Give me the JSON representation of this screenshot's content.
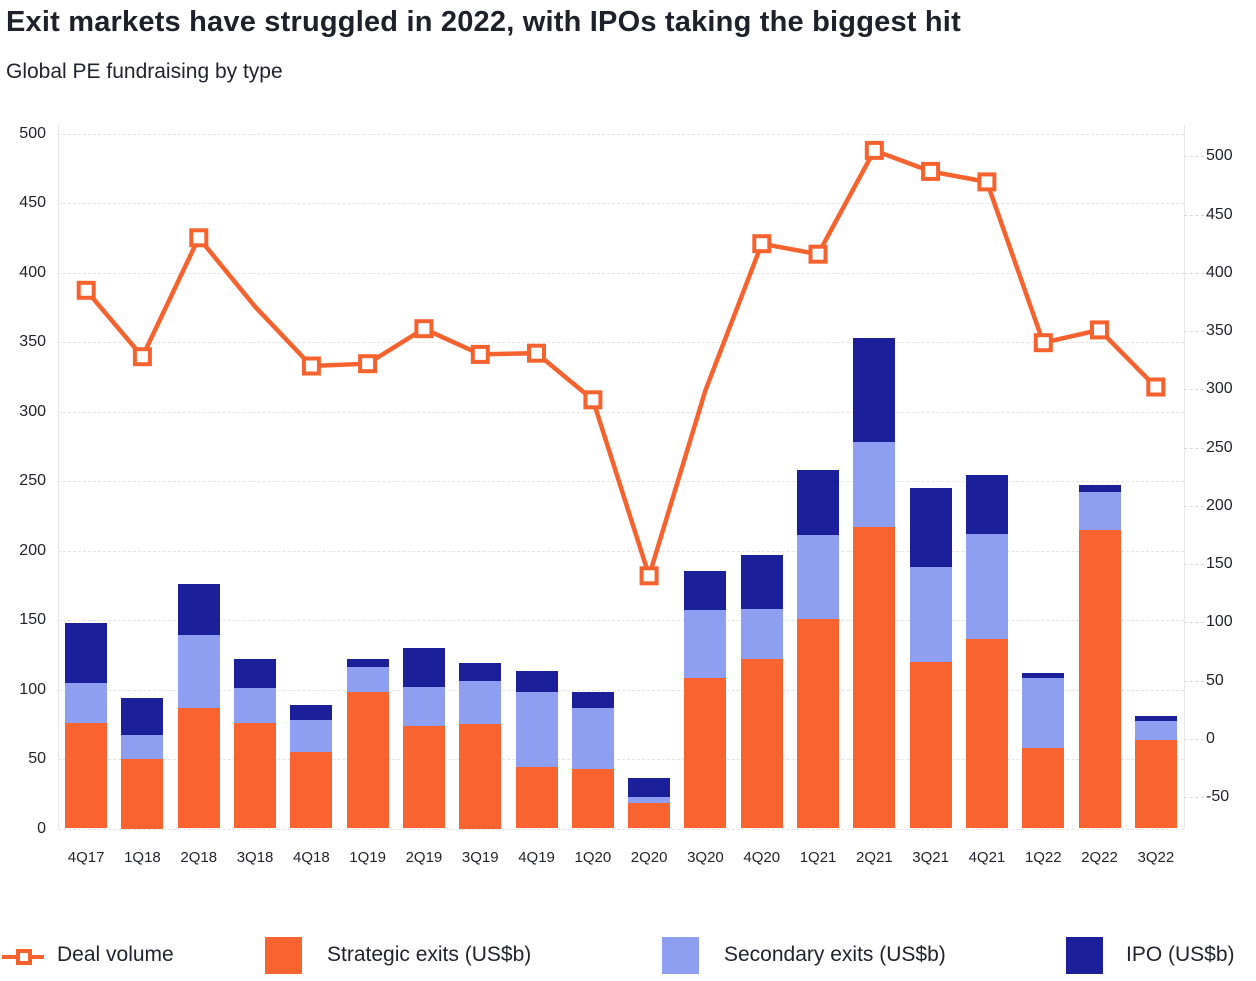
{
  "header": {
    "title": "Exit markets have struggled in 2022, with IPOs taking the biggest hit",
    "subtitle": "Global PE fundraising by type"
  },
  "colors": {
    "deal_volume_line": "#f6622e",
    "strategic_exits": "#f9632f",
    "secondary_exits": "#8e9ef0",
    "ipo": "#1b1f99",
    "axis_text": "#23232f",
    "gridline": "#e4e4e4",
    "background": "#ffffff"
  },
  "chart_data": {
    "type": "combo (stacked bar + line)",
    "categories": [
      "4Q17",
      "1Q18",
      "2Q18",
      "3Q18",
      "4Q18",
      "1Q19",
      "2Q19",
      "3Q19",
      "4Q19",
      "1Q20",
      "2Q20",
      "3Q20",
      "4Q20",
      "1Q21",
      "2Q21",
      "3Q21",
      "4Q21",
      "1Q22",
      "2Q22",
      "3Q22"
    ],
    "series": [
      {
        "name": "Deal volume",
        "type": "line",
        "axis": "right",
        "values": [
          385,
          328,
          430,
          371,
          320,
          322,
          352,
          330,
          331,
          291,
          140,
          299,
          425,
          416,
          505,
          487,
          478,
          340,
          351,
          302
        ],
        "markers_hidden": [
          "3Q18",
          "3Q20"
        ]
      },
      {
        "name": "Strategic exits (US$b)",
        "type": "bar",
        "axis": "left",
        "values": [
          76,
          50,
          87,
          76,
          55,
          98,
          74,
          75,
          44,
          43,
          18,
          108,
          122,
          151,
          217,
          120,
          136,
          58,
          215,
          64
        ]
      },
      {
        "name": "Secondary exits (US$b)",
        "type": "bar",
        "axis": "left",
        "values": [
          29,
          17,
          52,
          25,
          23,
          18,
          28,
          31,
          54,
          44,
          5,
          49,
          36,
          60,
          61,
          68,
          76,
          50,
          27,
          13
        ]
      },
      {
        "name": "IPO (US$b)",
        "type": "bar",
        "axis": "left",
        "values": [
          43,
          27,
          37,
          21,
          11,
          6,
          28,
          13,
          15,
          11,
          13,
          28,
          39,
          47,
          75,
          57,
          42,
          4,
          5,
          4
        ]
      }
    ],
    "left_axis": {
      "min": 0,
      "max": 500,
      "step": 50,
      "tick_labels": [
        "0",
        "50",
        "100",
        "150",
        "200",
        "250",
        "300",
        "350",
        "400",
        "450",
        "500"
      ]
    },
    "right_axis": {
      "min": -50,
      "max": 500,
      "step": 50,
      "tick_labels": [
        "500",
        "450",
        "400",
        "350",
        "300",
        "250",
        "200",
        "150",
        "100",
        "50",
        "0",
        "-50"
      ]
    },
    "legend": [
      {
        "label": "Deal volume",
        "swatch": "line-marker"
      },
      {
        "label": "Strategic exits (US$b)",
        "swatch": "square"
      },
      {
        "label": "Secondary exits (US$b)",
        "swatch": "square"
      },
      {
        "label": "IPO (US$b)",
        "swatch": "square"
      }
    ],
    "grid": "horizontal dashed lines at left-axis ticks",
    "legend_position": "bottom"
  }
}
